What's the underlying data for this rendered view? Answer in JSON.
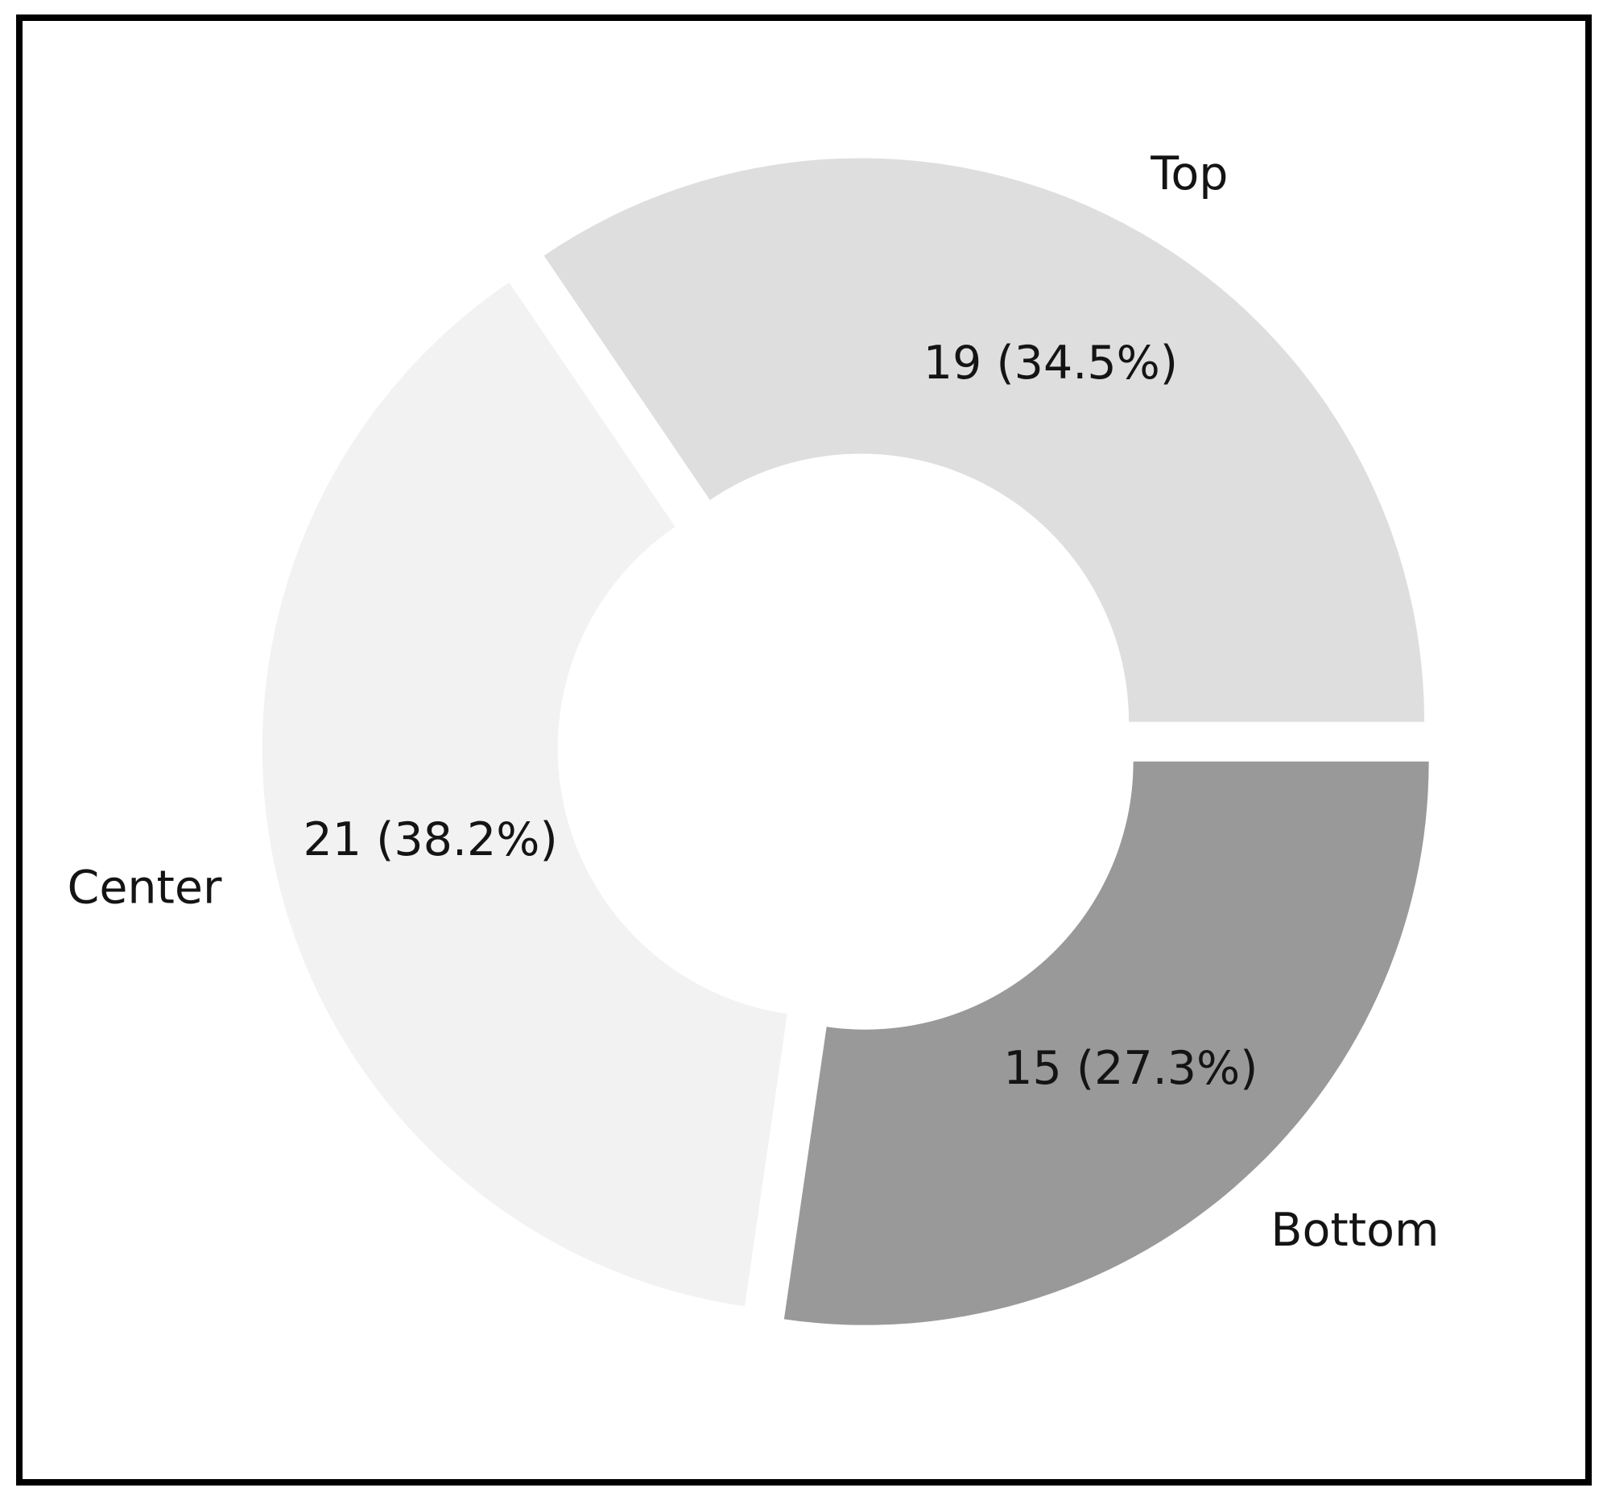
{
  "figure": {
    "background_color": "#ffffff",
    "frame_border_color": "#000000",
    "text_color": "#141414"
  },
  "chart_data": {
    "type": "pie",
    "subtype": "donut",
    "title": "",
    "legend": "none",
    "grid": false,
    "start_angle_deg": 0,
    "counterclockwise": true,
    "donut_hole_ratio": 0.476,
    "explode_ratio": 0.043,
    "label_distance": 1.1,
    "value_label_distance": 0.72,
    "categories": [
      "Top",
      "Center",
      "Bottom"
    ],
    "values": [
      19,
      21,
      15
    ],
    "slices": [
      {
        "label": "Top",
        "value": 19,
        "pct": 34.5,
        "value_label": "19 (34.5%)",
        "color": "#dedede"
      },
      {
        "label": "Center",
        "value": 21,
        "pct": 38.2,
        "value_label": "21 (38.2%)",
        "color": "#f2f2f2"
      },
      {
        "label": "Bottom",
        "value": 15,
        "pct": 27.3,
        "value_label": "15 (27.3%)",
        "color": "#999999"
      }
    ]
  }
}
